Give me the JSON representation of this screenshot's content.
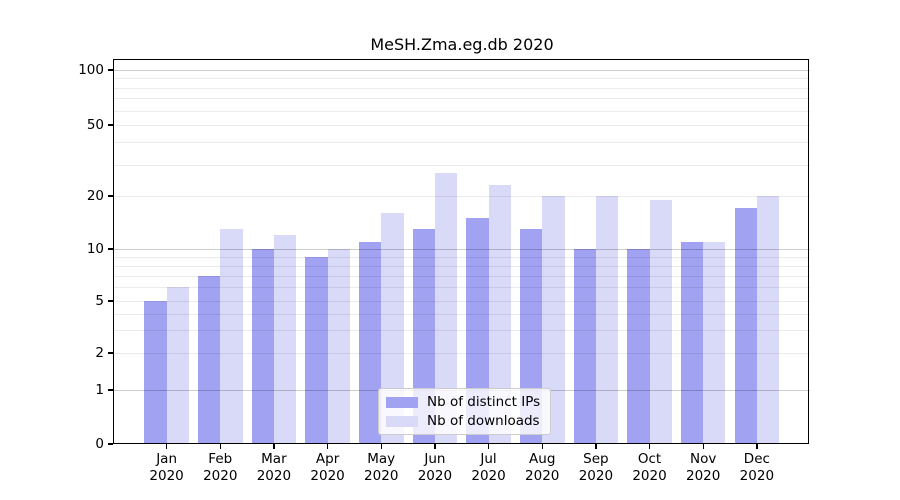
{
  "title": "MeSH.Zma.eg.db 2020",
  "colors": {
    "ips_bar": "#a2a2f2",
    "downloads_bar": "#d9d9f8",
    "grid_major": "rgba(0,0,0,0.20)",
    "grid_minor": "rgba(0,0,0,0.08)",
    "axis": "#000000"
  },
  "legend": {
    "items": [
      {
        "label": "Nb of distinct IPs",
        "series": "ips"
      },
      {
        "label": "Nb of downloads",
        "series": "downloads"
      }
    ]
  },
  "y_axis": {
    "ticks": [
      {
        "label": "100",
        "value": 100
      },
      {
        "label": "50",
        "value": 50
      },
      {
        "label": "20",
        "value": 20
      },
      {
        "label": "10",
        "value": 10
      },
      {
        "label": "5",
        "value": 5
      },
      {
        "label": "2",
        "value": 2
      },
      {
        "label": "1",
        "value": 1
      },
      {
        "label": "0",
        "value": 0
      }
    ],
    "major_gridline_values": [
      1,
      10,
      100
    ],
    "minor_gridline_values": [
      2,
      3,
      4,
      5,
      6,
      7,
      8,
      9,
      20,
      30,
      40,
      50,
      60,
      70,
      80,
      90
    ]
  },
  "x_axis": {
    "categories": [
      {
        "month": "Jan",
        "year": "2020"
      },
      {
        "month": "Feb",
        "year": "2020"
      },
      {
        "month": "Mar",
        "year": "2020"
      },
      {
        "month": "Apr",
        "year": "2020"
      },
      {
        "month": "May",
        "year": "2020"
      },
      {
        "month": "Jun",
        "year": "2020"
      },
      {
        "month": "Jul",
        "year": "2020"
      },
      {
        "month": "Aug",
        "year": "2020"
      },
      {
        "month": "Sep",
        "year": "2020"
      },
      {
        "month": "Oct",
        "year": "2020"
      },
      {
        "month": "Nov",
        "year": "2020"
      },
      {
        "month": "Dec",
        "year": "2020"
      }
    ]
  },
  "chart_data": {
    "type": "bar",
    "title": "MeSH.Zma.eg.db 2020",
    "xlabel": "",
    "ylabel": "",
    "categories": [
      "Jan 2020",
      "Feb 2020",
      "Mar 2020",
      "Apr 2020",
      "May 2020",
      "Jun 2020",
      "Jul 2020",
      "Aug 2020",
      "Sep 2020",
      "Oct 2020",
      "Nov 2020",
      "Dec 2020"
    ],
    "series": [
      {
        "name": "Nb of distinct IPs",
        "values": [
          5,
          7,
          10,
          9,
          11,
          13,
          15,
          13,
          10,
          10,
          11,
          17
        ]
      },
      {
        "name": "Nb of downloads",
        "values": [
          6,
          13,
          12,
          10,
          16,
          27,
          23,
          20,
          20,
          19,
          11,
          20
        ]
      }
    ],
    "y_scale": "log-like with compressed 0-2 region, includes 0",
    "y_ticks": [
      0,
      1,
      2,
      5,
      10,
      20,
      50,
      100
    ],
    "grid": true,
    "legend_position": "lower center-right inside plot"
  }
}
